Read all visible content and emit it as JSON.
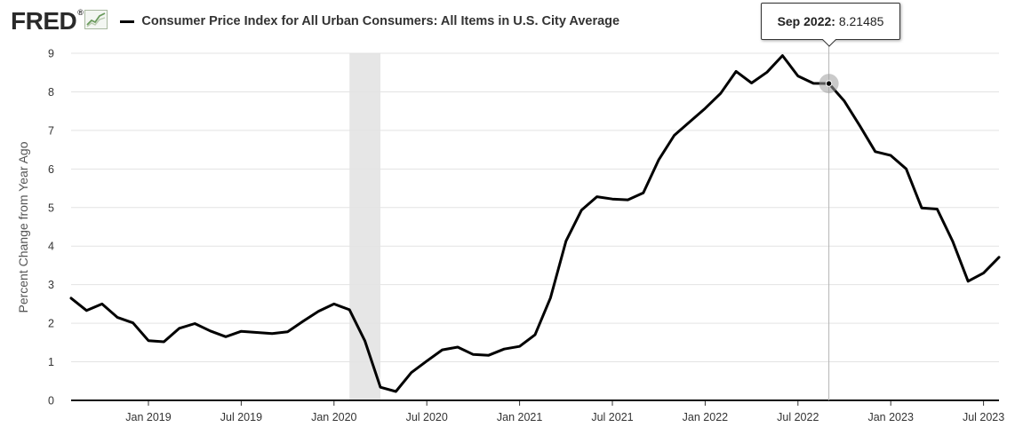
{
  "brand": {
    "name": "FRED",
    "registered": "®",
    "icon": "line-chart-icon"
  },
  "legend": {
    "label": "Consumer Price Index for All Urban Consumers: All Items in U.S. City Average",
    "swatch_color": "#000000"
  },
  "tooltip": {
    "date": "Sep 2022:",
    "value": "8.21485"
  },
  "chart_data": {
    "type": "line",
    "title": "Consumer Price Index for All Urban Consumers: All Items in U.S. City Average",
    "ylabel": "Percent Change from Year Ago",
    "xlabel": "",
    "ylim": [
      0,
      9
    ],
    "yticks": [
      0,
      1,
      2,
      3,
      4,
      5,
      6,
      7,
      8,
      9
    ],
    "xlim": [
      "2018-08",
      "2023-08"
    ],
    "xtick_labels": [
      {
        "date": "2019-01",
        "label": "Jan 2019"
      },
      {
        "date": "2019-07",
        "label": "Jul 2019"
      },
      {
        "date": "2020-01",
        "label": "Jan 2020"
      },
      {
        "date": "2020-07",
        "label": "Jul 2020"
      },
      {
        "date": "2021-01",
        "label": "Jan 2021"
      },
      {
        "date": "2021-07",
        "label": "Jul 2021"
      },
      {
        "date": "2022-01",
        "label": "Jan 2022"
      },
      {
        "date": "2022-07",
        "label": "Jul 2022"
      },
      {
        "date": "2023-01",
        "label": "Jan 2023"
      },
      {
        "date": "2023-07",
        "label": "Jul 2023"
      }
    ],
    "recession": {
      "start": "2020-02",
      "end": "2020-04",
      "color": "#e6e6e6"
    },
    "highlight": {
      "date": "2022-09",
      "value": 8.21485
    },
    "grid": true,
    "series": [
      {
        "color": "#000000",
        "x": [
          "2018-08",
          "2018-09",
          "2018-10",
          "2018-11",
          "2018-12",
          "2019-01",
          "2019-02",
          "2019-03",
          "2019-04",
          "2019-05",
          "2019-06",
          "2019-07",
          "2019-08",
          "2019-09",
          "2019-10",
          "2019-11",
          "2019-12",
          "2020-01",
          "2020-02",
          "2020-03",
          "2020-04",
          "2020-05",
          "2020-06",
          "2020-07",
          "2020-08",
          "2020-09",
          "2020-10",
          "2020-11",
          "2020-12",
          "2021-01",
          "2021-02",
          "2021-03",
          "2021-04",
          "2021-05",
          "2021-06",
          "2021-07",
          "2021-08",
          "2021-09",
          "2021-10",
          "2021-11",
          "2021-12",
          "2022-01",
          "2022-02",
          "2022-03",
          "2022-04",
          "2022-05",
          "2022-06",
          "2022-07",
          "2022-08",
          "2022-09",
          "2022-10",
          "2022-11",
          "2022-12",
          "2023-01",
          "2023-02",
          "2023-03",
          "2023-04",
          "2023-05",
          "2023-06",
          "2023-07",
          "2023-08"
        ],
        "y": [
          2.65,
          2.33,
          2.5,
          2.15,
          2.01,
          1.55,
          1.52,
          1.87,
          1.99,
          1.8,
          1.65,
          1.79,
          1.76,
          1.73,
          1.78,
          2.05,
          2.31,
          2.5,
          2.35,
          1.54,
          0.34,
          0.23,
          0.72,
          1.02,
          1.31,
          1.38,
          1.19,
          1.17,
          1.33,
          1.4,
          1.7,
          2.66,
          4.13,
          4.93,
          5.28,
          5.22,
          5.2,
          5.38,
          6.24,
          6.87,
          7.22,
          7.57,
          7.96,
          8.53,
          8.23,
          8.51,
          8.94,
          8.41,
          8.22,
          8.21485,
          7.76,
          7.12,
          6.45,
          6.35,
          6.0,
          4.99,
          4.96,
          4.13,
          3.09,
          3.3,
          3.71
        ]
      }
    ]
  }
}
